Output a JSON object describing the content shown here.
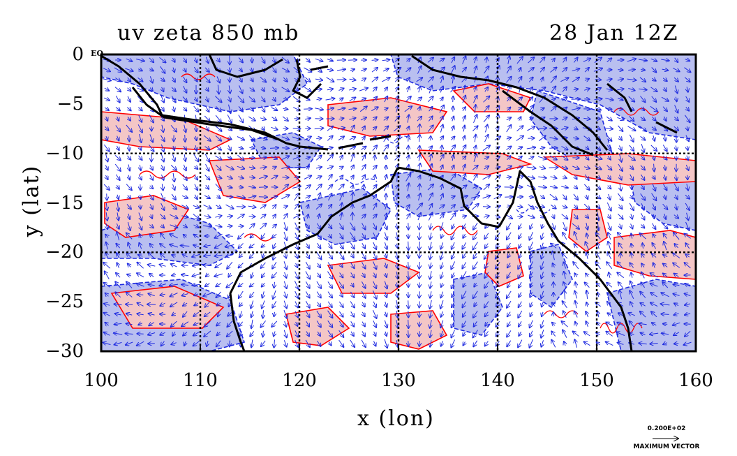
{
  "title": {
    "left": "uv zeta 850 mb",
    "right": "28 Jan 12Z"
  },
  "axes": {
    "x_title": "x (lon)",
    "y_title": "y (lat)",
    "x_ticks": [
      "100",
      "110",
      "120",
      "130",
      "140",
      "150",
      "160"
    ],
    "y_ticks": [
      "0",
      "−5",
      "−10",
      "−15",
      "−20",
      "−25",
      "−30"
    ],
    "equator_label": "EQ"
  },
  "legend": {
    "max_vector_value": "0.200E+02",
    "max_vector_label": "MAXIMUM VECTOR"
  },
  "map": {
    "lon_range": [
      100,
      160
    ],
    "lat_range": [
      -30,
      0
    ],
    "colors": {
      "positive_fill": "#f4c6c6",
      "negative_fill": "#b9bff0",
      "positive_contour": "#ff0000",
      "negative_contour": "#1f2be0",
      "vectors": "#1f2be0",
      "coastline": "#000000",
      "grid": "#000000"
    }
  }
}
